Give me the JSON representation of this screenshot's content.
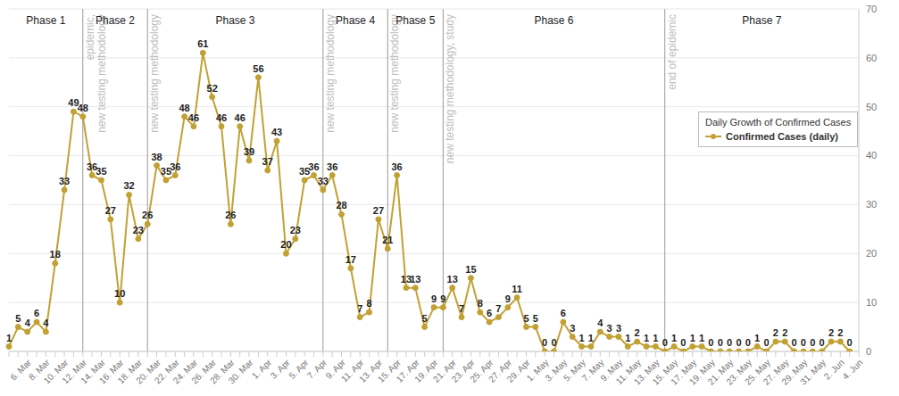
{
  "chart_data": {
    "type": "line",
    "legend_title": "Daily Growth of Confirmed Cases",
    "categories": [
      null,
      null,
      "6. Mar",
      null,
      "8. Mar",
      null,
      "10. Mar",
      null,
      "12. Mar",
      null,
      "14. Mar",
      null,
      "16. Mar",
      null,
      "18. Mar",
      null,
      "20. Mar",
      null,
      "22. Mar",
      null,
      "24. Mar",
      null,
      "26. Mar",
      null,
      "28. Mar",
      null,
      "30. Mar",
      null,
      "1. Apr",
      null,
      "3. Apr",
      null,
      "5. Apr",
      null,
      "7. Apr",
      null,
      "9. Apr",
      null,
      "11. Apr",
      null,
      "13. Apr",
      null,
      "15. Apr",
      null,
      "17. Apr",
      null,
      "19. Apr",
      null,
      "21. Apr",
      null,
      "23. Apr",
      null,
      "25. Apr",
      null,
      "27. Apr",
      null,
      "29. Apr",
      null,
      "1. May",
      null,
      "3. May",
      null,
      "5. May",
      null,
      "7. May",
      null,
      "9. May",
      null,
      "11. May",
      null,
      "13. May",
      null,
      "15. May",
      null,
      "17. May",
      null,
      "19. May",
      null,
      "21. May",
      null,
      "23. May",
      null,
      "25. May",
      null,
      "27. May",
      null,
      "29. May",
      null,
      "31. May",
      null,
      "2. Jun",
      null,
      "4. Jun"
    ],
    "series": [
      {
        "name": "Confirmed Cases (daily)",
        "color": "#c2a134",
        "marker": "circle",
        "values": [
          1,
          5,
          4,
          6,
          4,
          18,
          33,
          49,
          48,
          36,
          35,
          27,
          10,
          32,
          23,
          26,
          38,
          35,
          36,
          48,
          46,
          61,
          52,
          46,
          26,
          46,
          39,
          56,
          37,
          43,
          20,
          23,
          35,
          36,
          33,
          36,
          28,
          17,
          7,
          8,
          27,
          21,
          36,
          13,
          13,
          5,
          9,
          9,
          13,
          7,
          15,
          8,
          6,
          7,
          9,
          11,
          5,
          5,
          0,
          0,
          6,
          3,
          1,
          1,
          4,
          3,
          3,
          1,
          2,
          1,
          1,
          0,
          1,
          0,
          1,
          1,
          0,
          0,
          0,
          0,
          0,
          1,
          0,
          2,
          2,
          0,
          0,
          0,
          0,
          2,
          2,
          0,
          null
        ]
      }
    ],
    "ylim": [
      0,
      70
    ],
    "yticks": [
      0,
      10,
      20,
      30,
      40,
      50,
      60,
      70
    ],
    "grid": true,
    "data_labels": true,
    "legend": "right",
    "phases": [
      {
        "label": "Phase 1",
        "from": 0,
        "to": 8
      },
      {
        "label": "Phase 2",
        "from": 8,
        "to": 15
      },
      {
        "label": "Phase 3",
        "from": 15,
        "to": 34
      },
      {
        "label": "Phase 4",
        "from": 34,
        "to": 41
      },
      {
        "label": "Phase 5",
        "from": 41,
        "to": 47
      },
      {
        "label": "Phase 6",
        "from": 47,
        "to": 71
      },
      {
        "label": "Phase 7",
        "from": 71,
        "to": 92
      }
    ],
    "markers": [
      {
        "at": 8,
        "lines": [
          "epidemic,",
          "new testing methodology"
        ]
      },
      {
        "at": 15,
        "lines": [
          "new testing methodology"
        ]
      },
      {
        "at": 34,
        "lines": [
          "new testing methodology"
        ]
      },
      {
        "at": 41,
        "lines": [
          "new testing methodology"
        ]
      },
      {
        "at": 47,
        "lines": [
          "new testing methodology, study"
        ]
      },
      {
        "at": 71,
        "lines": [
          "end of epidemic"
        ]
      }
    ]
  }
}
